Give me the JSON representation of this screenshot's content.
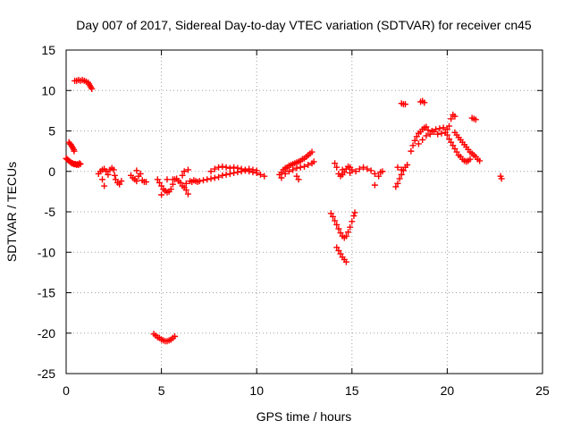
{
  "chart_data": {
    "type": "scatter",
    "title": "Day 007 of 2017, Sidereal Day-to-day VTEC variation (SDTVAR) for receiver cn45",
    "xlabel": "GPS time / hours",
    "ylabel": "SDTVAR / TECUs",
    "xlim": [
      0,
      25
    ],
    "ylim": [
      -25,
      15
    ],
    "x_ticks": [
      0,
      5,
      10,
      15,
      20,
      25
    ],
    "y_ticks": [
      -25,
      -20,
      -15,
      -10,
      -5,
      0,
      5,
      10,
      15
    ],
    "grid": true,
    "marker": "plus",
    "color": "#ff0000",
    "series": [
      {
        "points": [
          [
            0.0,
            1.6
          ],
          [
            0.05,
            1.5
          ],
          [
            0.1,
            1.4
          ],
          [
            0.15,
            1.3
          ],
          [
            0.2,
            1.2
          ],
          [
            0.25,
            1.1
          ],
          [
            0.3,
            1.0
          ],
          [
            0.35,
            1.0
          ],
          [
            0.4,
            0.9
          ],
          [
            0.45,
            0.9
          ],
          [
            0.5,
            0.9
          ],
          [
            0.55,
            0.8
          ],
          [
            0.6,
            0.9
          ],
          [
            0.65,
            0.8
          ],
          [
            0.7,
            1.0
          ],
          [
            0.75,
            0.9
          ],
          [
            0.15,
            3.6
          ],
          [
            0.2,
            3.4
          ],
          [
            0.25,
            3.3
          ],
          [
            0.3,
            3.1
          ],
          [
            0.35,
            2.9
          ],
          [
            0.4,
            2.7
          ],
          [
            0.42,
            2.5
          ],
          [
            0.45,
            11.2
          ],
          [
            0.55,
            11.2
          ],
          [
            0.65,
            11.3
          ],
          [
            0.75,
            11.2
          ],
          [
            0.85,
            11.3
          ],
          [
            0.95,
            11.2
          ],
          [
            1.05,
            11.1
          ],
          [
            1.15,
            11.0
          ],
          [
            1.2,
            10.8
          ],
          [
            1.25,
            10.6
          ],
          [
            1.3,
            10.4
          ],
          [
            1.35,
            10.2
          ],
          [
            1.7,
            -0.3
          ],
          [
            1.8,
            0.0
          ],
          [
            1.9,
            0.2
          ],
          [
            2.0,
            0.3
          ],
          [
            2.1,
            0.0
          ],
          [
            2.2,
            -0.4
          ],
          [
            2.3,
            0.2
          ],
          [
            2.4,
            0.4
          ],
          [
            2.5,
            0.2
          ],
          [
            2.55,
            -0.5
          ],
          [
            2.6,
            -1.0
          ],
          [
            2.7,
            -1.4
          ],
          [
            2.8,
            -1.6
          ],
          [
            2.9,
            -1.2
          ],
          [
            1.9,
            -1.0
          ],
          [
            2.0,
            -1.8
          ],
          [
            3.4,
            -0.5
          ],
          [
            3.5,
            -0.8
          ],
          [
            3.6,
            -1.0
          ],
          [
            3.7,
            -1.2
          ],
          [
            3.8,
            -0.6
          ],
          [
            3.9,
            -0.3
          ],
          [
            4.0,
            -1.1
          ],
          [
            4.1,
            -1.3
          ],
          [
            4.2,
            -1.3
          ],
          [
            3.7,
            0.1
          ],
          [
            4.6,
            -20.1
          ],
          [
            4.7,
            -20.3
          ],
          [
            4.8,
            -20.5
          ],
          [
            4.9,
            -20.6
          ],
          [
            5.0,
            -20.8
          ],
          [
            5.1,
            -20.9
          ],
          [
            5.2,
            -21.0
          ],
          [
            5.3,
            -21.0
          ],
          [
            5.4,
            -20.9
          ],
          [
            5.5,
            -20.8
          ],
          [
            5.6,
            -20.6
          ],
          [
            5.7,
            -20.4
          ],
          [
            4.8,
            -1.0
          ],
          [
            4.9,
            -1.4
          ],
          [
            5.0,
            -1.8
          ],
          [
            5.1,
            -2.2
          ],
          [
            5.2,
            -2.4
          ],
          [
            5.3,
            -2.6
          ],
          [
            5.4,
            -2.5
          ],
          [
            5.5,
            -2.2
          ],
          [
            5.6,
            -1.6
          ],
          [
            5.7,
            -1.0
          ],
          [
            5.8,
            -0.9
          ],
          [
            5.9,
            -1.2
          ],
          [
            6.0,
            -1.4
          ],
          [
            6.1,
            -1.8
          ],
          [
            6.2,
            -2.0
          ],
          [
            6.3,
            -2.3
          ],
          [
            6.4,
            -2.8
          ],
          [
            5.0,
            -2.9
          ],
          [
            5.3,
            -1.0
          ],
          [
            5.6,
            -1.0
          ],
          [
            6.1,
            -0.5
          ],
          [
            6.3,
            -1.5
          ],
          [
            6.5,
            -1.2
          ],
          [
            6.6,
            -1.3
          ],
          [
            6.7,
            -1.1
          ],
          [
            6.8,
            -1.2
          ],
          [
            6.9,
            -1.3
          ],
          [
            7.0,
            -1.2
          ],
          [
            7.2,
            -1.1
          ],
          [
            7.4,
            -1.0
          ],
          [
            7.6,
            -0.9
          ],
          [
            7.8,
            -0.8
          ],
          [
            8.0,
            -0.7
          ],
          [
            8.2,
            -0.5
          ],
          [
            8.4,
            -0.4
          ],
          [
            8.6,
            -0.3
          ],
          [
            8.8,
            -0.2
          ],
          [
            9.0,
            -0.1
          ],
          [
            9.2,
            0.0
          ],
          [
            9.4,
            0.1
          ],
          [
            9.6,
            0.0
          ],
          [
            9.8,
            -0.1
          ],
          [
            10.0,
            -0.2
          ],
          [
            10.2,
            -0.4
          ],
          [
            10.4,
            -0.6
          ],
          [
            7.6,
            0.0
          ],
          [
            7.8,
            0.3
          ],
          [
            8.0,
            0.5
          ],
          [
            8.2,
            0.6
          ],
          [
            8.4,
            0.5
          ],
          [
            8.6,
            0.4
          ],
          [
            8.8,
            0.5
          ],
          [
            9.0,
            0.4
          ],
          [
            9.2,
            0.3
          ],
          [
            9.4,
            0.2
          ],
          [
            9.6,
            0.3
          ],
          [
            9.8,
            0.2
          ],
          [
            10.0,
            0.1
          ],
          [
            6.2,
            0.0
          ],
          [
            6.4,
            0.2
          ],
          [
            11.2,
            -0.4
          ],
          [
            11.3,
            -0.1
          ],
          [
            11.4,
            0.2
          ],
          [
            11.5,
            0.4
          ],
          [
            11.6,
            0.5
          ],
          [
            11.7,
            0.7
          ],
          [
            11.8,
            0.8
          ],
          [
            11.9,
            0.9
          ],
          [
            12.0,
            1.0
          ],
          [
            12.1,
            1.1
          ],
          [
            12.2,
            1.2
          ],
          [
            12.3,
            1.3
          ],
          [
            12.4,
            1.5
          ],
          [
            12.5,
            1.6
          ],
          [
            12.6,
            1.8
          ],
          [
            12.7,
            2.0
          ],
          [
            12.8,
            2.2
          ],
          [
            12.9,
            2.4
          ],
          [
            13.0,
            1.2
          ],
          [
            11.3,
            -0.8
          ],
          [
            11.5,
            -0.3
          ],
          [
            11.7,
            0.0
          ],
          [
            11.9,
            0.2
          ],
          [
            12.1,
            0.4
          ],
          [
            12.3,
            0.5
          ],
          [
            12.5,
            0.6
          ],
          [
            12.7,
            0.8
          ],
          [
            12.9,
            1.0
          ],
          [
            12.1,
            -0.6
          ],
          [
            12.2,
            -1.0
          ],
          [
            13.9,
            -5.2
          ],
          [
            14.0,
            -5.6
          ],
          [
            14.1,
            -6.1
          ],
          [
            14.2,
            -6.6
          ],
          [
            14.3,
            -7.1
          ],
          [
            14.4,
            -7.6
          ],
          [
            14.5,
            -8.0
          ],
          [
            14.6,
            -8.2
          ],
          [
            14.7,
            -8.0
          ],
          [
            14.8,
            -7.5
          ],
          [
            14.9,
            -6.9
          ],
          [
            15.0,
            -6.2
          ],
          [
            15.1,
            -5.5
          ],
          [
            15.15,
            -5.1
          ],
          [
            14.2,
            -9.4
          ],
          [
            14.3,
            -9.8
          ],
          [
            14.4,
            -10.2
          ],
          [
            14.5,
            -10.6
          ],
          [
            14.6,
            -10.9
          ],
          [
            14.7,
            -11.2
          ],
          [
            14.1,
            1.0
          ],
          [
            14.2,
            0.5
          ],
          [
            14.3,
            -0.3
          ],
          [
            14.4,
            -0.6
          ],
          [
            14.5,
            -0.4
          ],
          [
            14.6,
            -0.1
          ],
          [
            14.7,
            0.3
          ],
          [
            14.8,
            0.6
          ],
          [
            14.9,
            0.5
          ],
          [
            15.0,
            0.2
          ],
          [
            15.2,
            0.0
          ],
          [
            15.4,
            0.3
          ],
          [
            15.6,
            0.5
          ],
          [
            15.8,
            0.3
          ],
          [
            16.0,
            0.1
          ],
          [
            16.2,
            -0.3
          ],
          [
            16.4,
            -0.6
          ],
          [
            14.5,
            0.2
          ],
          [
            14.9,
            -0.2
          ],
          [
            16.5,
            -0.1
          ],
          [
            16.6,
            0.0
          ],
          [
            16.2,
            -1.7
          ],
          [
            17.3,
            -1.9
          ],
          [
            17.4,
            -1.5
          ],
          [
            17.5,
            -0.9
          ],
          [
            17.6,
            -0.4
          ],
          [
            17.7,
            0.1
          ],
          [
            17.8,
            0.5
          ],
          [
            17.9,
            0.8
          ],
          [
            17.4,
            0.5
          ],
          [
            17.6,
            0.2
          ],
          [
            17.6,
            8.4
          ],
          [
            17.7,
            8.3
          ],
          [
            17.8,
            8.3
          ],
          [
            18.6,
            8.6
          ],
          [
            18.7,
            8.7
          ],
          [
            18.8,
            8.5
          ],
          [
            18.1,
            2.5
          ],
          [
            18.2,
            3.2
          ],
          [
            18.3,
            3.8
          ],
          [
            18.4,
            4.3
          ],
          [
            18.5,
            4.7
          ],
          [
            18.6,
            4.9
          ],
          [
            18.7,
            5.2
          ],
          [
            18.8,
            5.4
          ],
          [
            18.9,
            5.5
          ],
          [
            19.0,
            5.1
          ],
          [
            19.2,
            5.0
          ],
          [
            19.4,
            5.2
          ],
          [
            19.6,
            5.3
          ],
          [
            19.8,
            5.4
          ],
          [
            20.0,
            5.2
          ],
          [
            20.1,
            5.6
          ],
          [
            20.2,
            6.5
          ],
          [
            20.3,
            7.0
          ],
          [
            20.4,
            6.8
          ],
          [
            18.5,
            3.4
          ],
          [
            18.7,
            3.9
          ],
          [
            18.9,
            4.4
          ],
          [
            19.1,
            4.6
          ],
          [
            19.3,
            4.9
          ],
          [
            19.5,
            4.6
          ],
          [
            19.7,
            4.7
          ],
          [
            19.9,
            4.8
          ],
          [
            20.0,
            4.5
          ],
          [
            20.1,
            4.0
          ],
          [
            20.2,
            3.6
          ],
          [
            20.3,
            3.2
          ],
          [
            20.4,
            2.8
          ],
          [
            20.5,
            2.4
          ],
          [
            20.6,
            2.0
          ],
          [
            20.7,
            1.8
          ],
          [
            20.8,
            1.5
          ],
          [
            20.9,
            1.3
          ],
          [
            21.0,
            1.2
          ],
          [
            21.1,
            1.3
          ],
          [
            21.2,
            1.5
          ],
          [
            20.4,
            4.8
          ],
          [
            20.5,
            4.5
          ],
          [
            20.6,
            4.2
          ],
          [
            20.7,
            3.9
          ],
          [
            20.8,
            3.6
          ],
          [
            20.9,
            3.3
          ],
          [
            21.0,
            3.0
          ],
          [
            21.1,
            2.7
          ],
          [
            21.2,
            2.4
          ],
          [
            21.3,
            2.2
          ],
          [
            21.4,
            2.0
          ],
          [
            21.5,
            1.8
          ],
          [
            21.6,
            1.5
          ],
          [
            21.7,
            1.3
          ],
          [
            21.3,
            6.6
          ],
          [
            21.4,
            6.5
          ],
          [
            21.5,
            6.4
          ],
          [
            22.8,
            -0.6
          ],
          [
            22.85,
            -0.9
          ]
        ]
      }
    ]
  }
}
